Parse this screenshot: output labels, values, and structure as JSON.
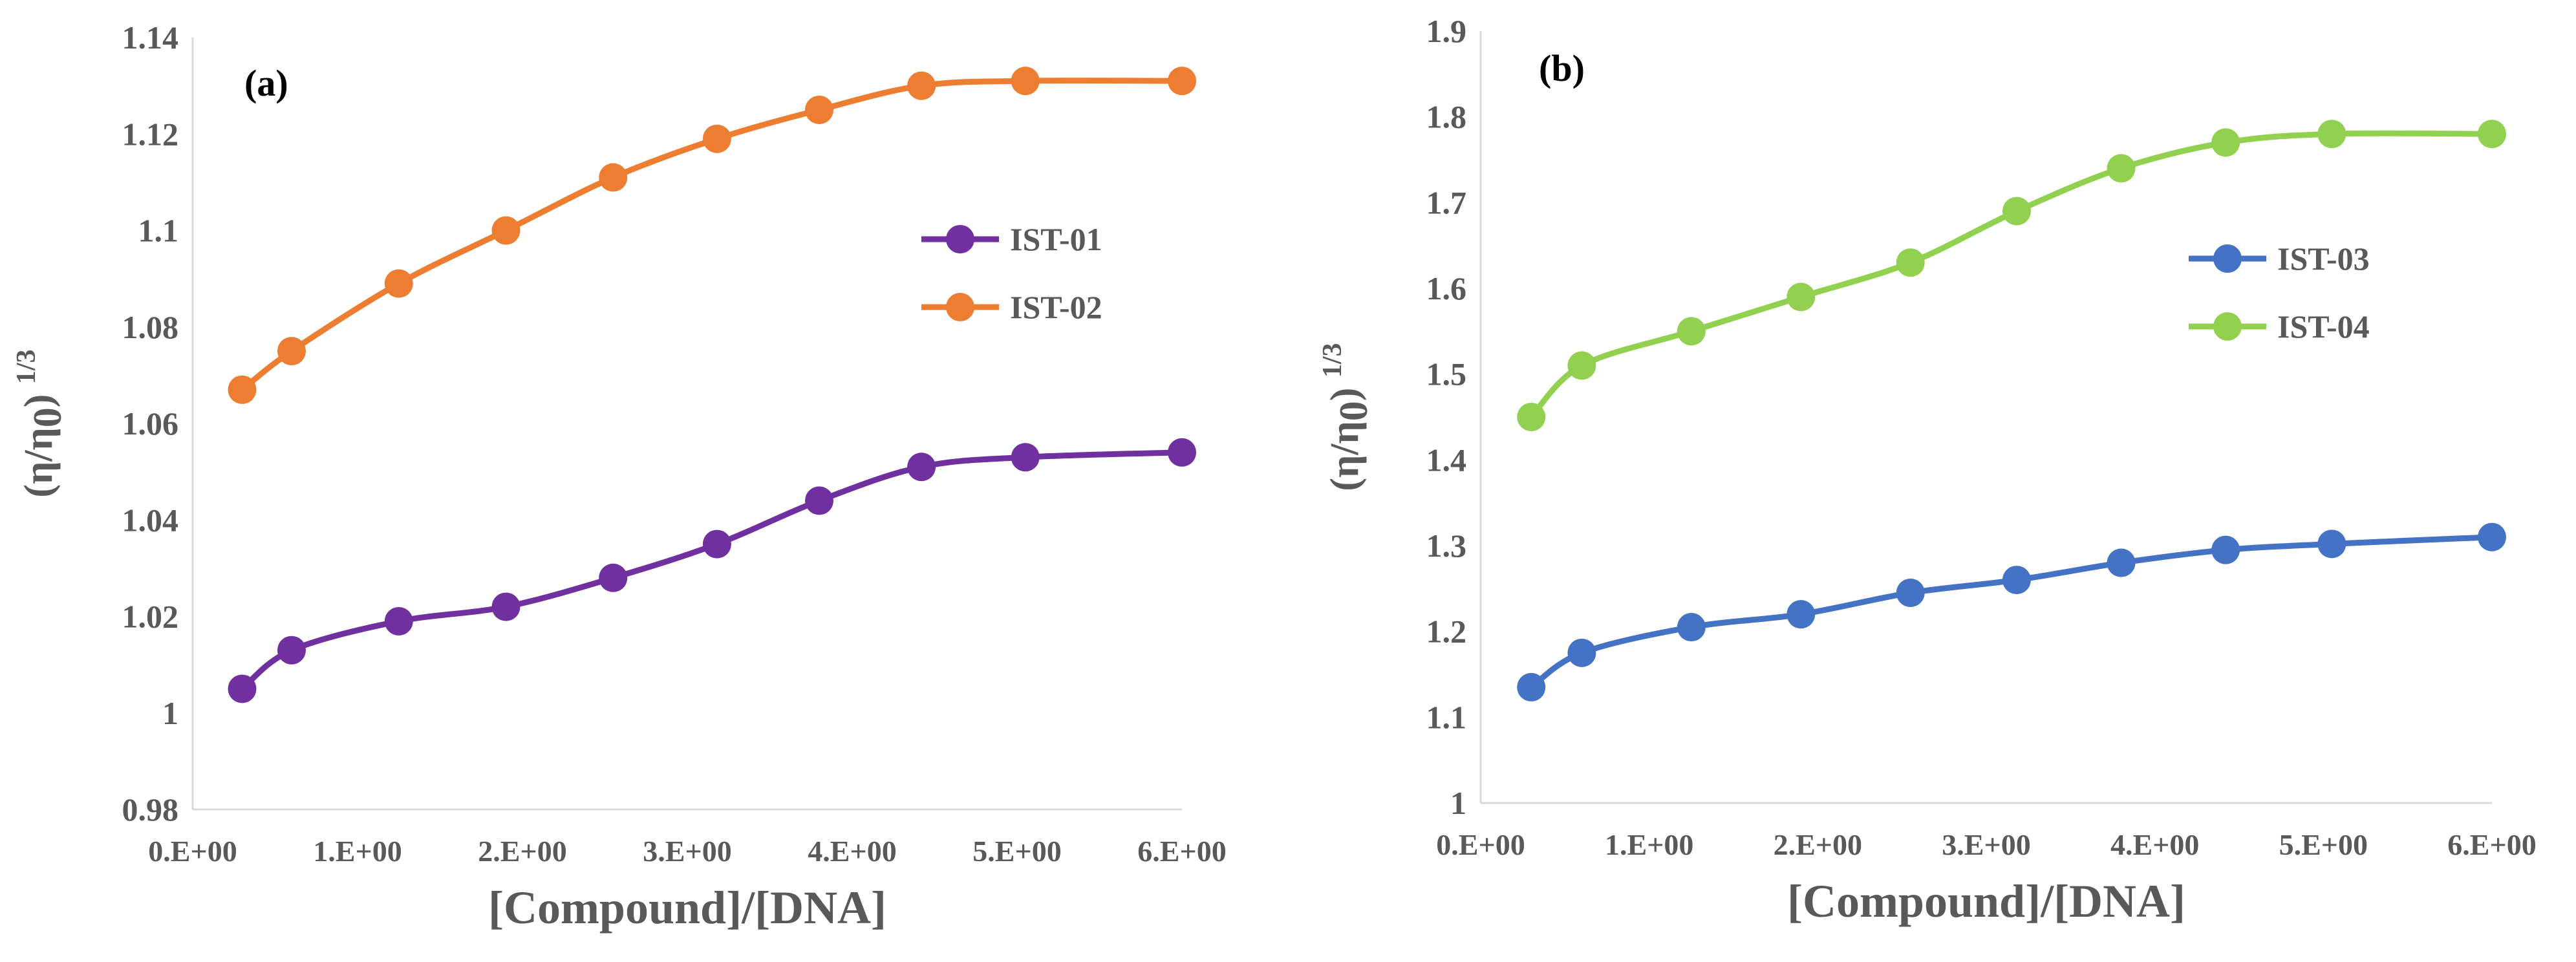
{
  "chart_data": [
    {
      "type": "line",
      "panel_label": "(a)",
      "x": [
        0.3,
        0.6,
        1.25,
        1.9,
        2.55,
        3.18,
        3.8,
        4.42,
        5.05,
        6.0
      ],
      "series": [
        {
          "name": "IST-01",
          "color": "#7030a0",
          "values": [
            1.005,
            1.013,
            1.019,
            1.022,
            1.028,
            1.035,
            1.044,
            1.051,
            1.053,
            1.054
          ]
        },
        {
          "name": "IST-02",
          "color": "#ed7d31",
          "values": [
            1.067,
            1.075,
            1.089,
            1.1,
            1.111,
            1.119,
            1.125,
            1.13,
            1.131,
            1.131
          ]
        }
      ],
      "xlabel": "[Compound]/[DNA]",
      "ylabel": {
        "main": "(η/η",
        "sub": "0",
        "close": ")",
        "sup": "1/3"
      },
      "xlim": [
        0,
        6
      ],
      "ylim": [
        0.98,
        1.14
      ],
      "x_ticks": [
        0,
        1,
        2,
        3,
        4,
        5,
        6
      ],
      "x_tick_labels": [
        "0.E+00",
        "1.E+00",
        "2.E+00",
        "3.E+00",
        "4.E+00",
        "5.E+00",
        "6.E+00"
      ],
      "y_ticks": [
        0.98,
        1,
        1.02,
        1.04,
        1.06,
        1.08,
        1.1,
        1.12,
        1.14
      ],
      "y_tick_labels": [
        "0.98",
        "1",
        "1.02",
        "1.04",
        "1.06",
        "1.08",
        "1.1",
        "1.12",
        "1.14"
      ],
      "grid": false,
      "legend_position": "right"
    },
    {
      "type": "line",
      "panel_label": "(b)",
      "x": [
        0.3,
        0.6,
        1.25,
        1.9,
        2.55,
        3.18,
        3.8,
        4.42,
        5.05,
        6.0
      ],
      "series": [
        {
          "name": "IST-03",
          "color": "#4472c4",
          "values": [
            1.135,
            1.175,
            1.205,
            1.22,
            1.245,
            1.26,
            1.28,
            1.295,
            1.302,
            1.31
          ]
        },
        {
          "name": "IST-04",
          "color": "#92d050",
          "values": [
            1.45,
            1.51,
            1.55,
            1.59,
            1.63,
            1.69,
            1.74,
            1.77,
            1.78,
            1.78
          ]
        }
      ],
      "xlabel": "[Compound]/[DNA]",
      "ylabel": {
        "main": "(η/η",
        "sub": "0",
        "close": ")",
        "sup": "1/3"
      },
      "xlim": [
        0,
        6
      ],
      "ylim": [
        1,
        1.9
      ],
      "x_ticks": [
        0,
        1,
        2,
        3,
        4,
        5,
        6
      ],
      "x_tick_labels": [
        "0.E+00",
        "1.E+00",
        "2.E+00",
        "3.E+00",
        "4.E+00",
        "5.E+00",
        "6.E+00"
      ],
      "y_ticks": [
        1,
        1.1,
        1.2,
        1.3,
        1.4,
        1.5,
        1.6,
        1.7,
        1.8,
        1.9
      ],
      "y_tick_labels": [
        "1",
        "1.1",
        "1.2",
        "1.3",
        "1.4",
        "1.5",
        "1.6",
        "1.7",
        "1.8",
        "1.9"
      ],
      "grid": false,
      "legend_position": "right"
    }
  ]
}
